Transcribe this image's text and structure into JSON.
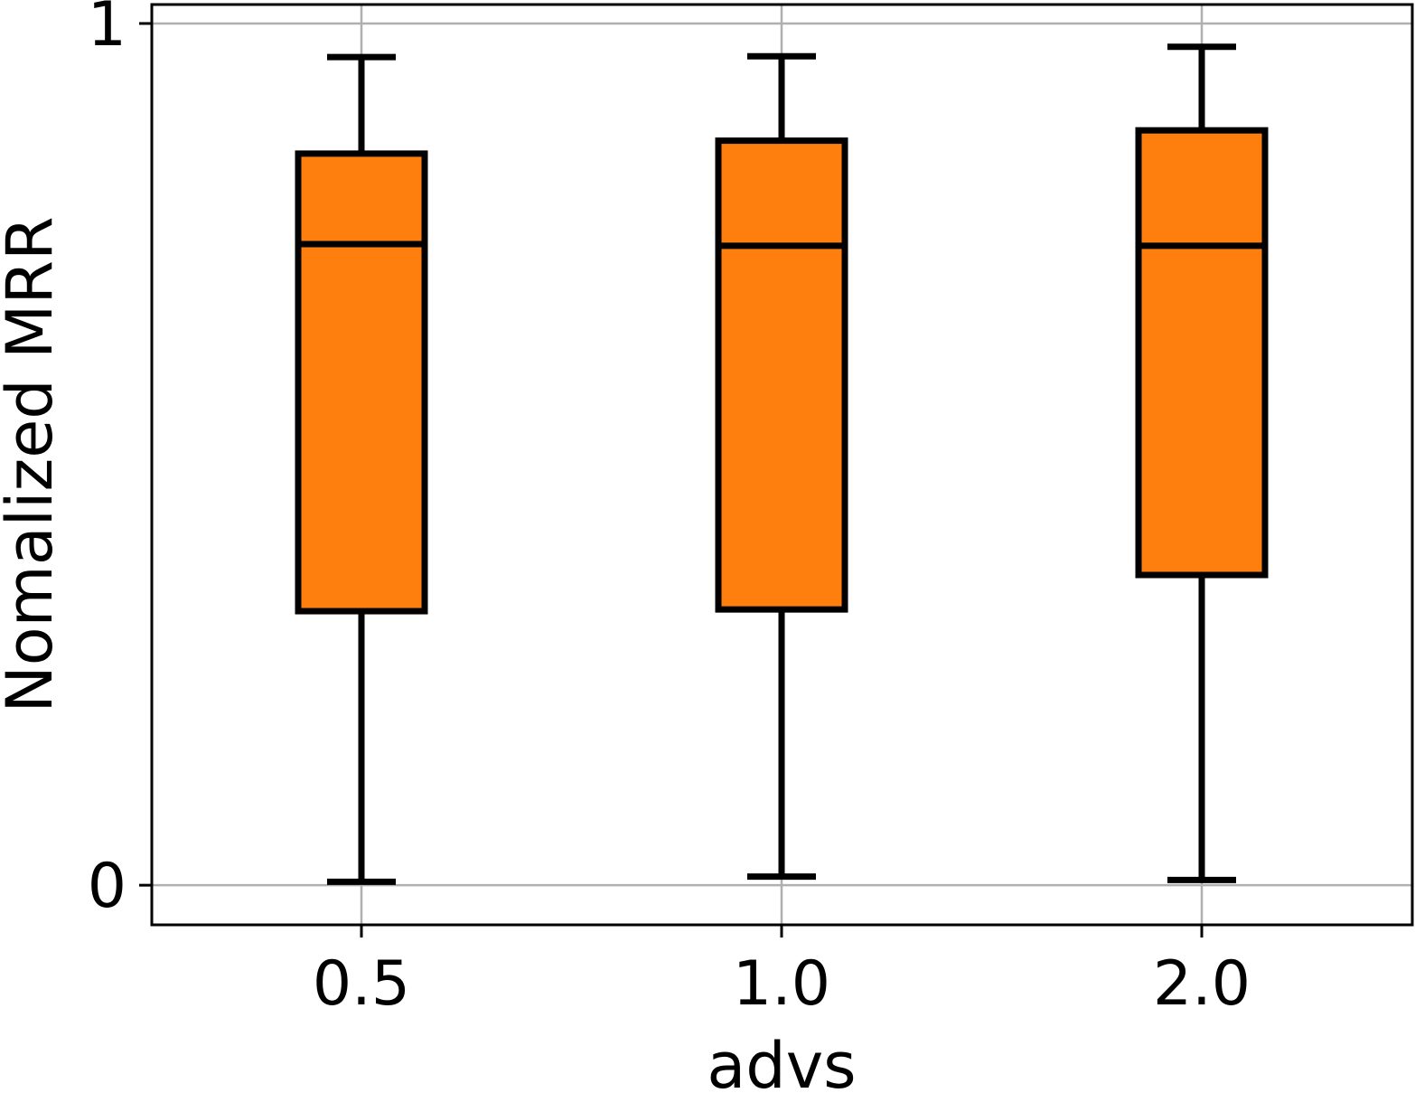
{
  "chart_data": {
    "type": "box",
    "title": "",
    "xlabel": "advs",
    "ylabel": "Nomalized MRR",
    "categories": [
      "0.5",
      "1.0",
      "2.0"
    ],
    "yticks": [
      {
        "value": 0,
        "label": "0"
      },
      {
        "value": 1,
        "label": "1"
      }
    ],
    "ylim": [
      -0.046,
      1.022
    ],
    "grid": true,
    "box_color": "#ff7f0e",
    "edge_color": "#000000",
    "grid_color": "#b0b0b0",
    "boxes": [
      {
        "category": "0.5",
        "whisker_low": 0.004,
        "q1": 0.318,
        "median": 0.744,
        "q3": 0.849,
        "whisker_high": 0.961
      },
      {
        "category": "1.0",
        "whisker_low": 0.01,
        "q1": 0.32,
        "median": 0.742,
        "q3": 0.864,
        "whisker_high": 0.962
      },
      {
        "category": "2.0",
        "whisker_low": 0.006,
        "q1": 0.36,
        "median": 0.742,
        "q3": 0.876,
        "whisker_high": 0.973
      }
    ]
  }
}
